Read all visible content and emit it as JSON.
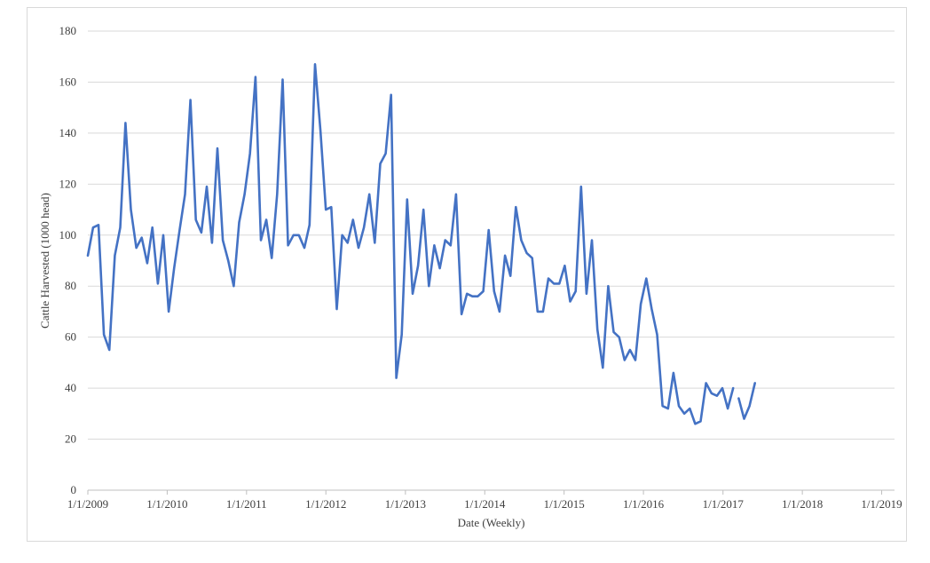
{
  "chart_data": {
    "type": "line",
    "title": "",
    "xlabel": "Date (Weekly)",
    "ylabel": "Cattle Harvested (1000 head)",
    "ylim": [
      0,
      180
    ],
    "y_ticks": [
      0,
      20,
      40,
      60,
      80,
      100,
      120,
      140,
      160,
      180
    ],
    "x_ticks": [
      "1/1/2009",
      "1/1/2010",
      "1/1/2011",
      "1/1/2012",
      "1/1/2013",
      "1/1/2014",
      "1/1/2015",
      "1/1/2016",
      "1/1/2017",
      "1/1/2018",
      "1/1/2019"
    ],
    "x_range": [
      "2009-01-01",
      "2019-03-01"
    ],
    "grid": "horizontal",
    "line_color": "#4472c4",
    "series": [
      {
        "segments": [
          [
            [
              "2009-01-01",
              92
            ],
            [
              "2009-01-25",
              103
            ],
            [
              "2009-02-19",
              104
            ],
            [
              "2009-03-16",
              61
            ],
            [
              "2009-04-10",
              55
            ],
            [
              "2009-05-05",
              92
            ],
            [
              "2009-05-30",
              103
            ],
            [
              "2009-06-23",
              144
            ],
            [
              "2009-07-18",
              110
            ],
            [
              "2009-08-12",
              95
            ],
            [
              "2009-09-06",
              99
            ],
            [
              "2009-10-01",
              89
            ],
            [
              "2009-10-25",
              103
            ],
            [
              "2009-11-19",
              81
            ],
            [
              "2009-12-14",
              100
            ],
            [
              "2010-01-08",
              70
            ],
            [
              "2010-02-02",
              87
            ],
            [
              "2010-02-27",
              102
            ],
            [
              "2010-03-24",
              116
            ],
            [
              "2010-04-18",
              153
            ],
            [
              "2010-05-13",
              106
            ],
            [
              "2010-06-07",
              101
            ],
            [
              "2010-07-02",
              119
            ],
            [
              "2010-07-26",
              97
            ],
            [
              "2010-08-20",
              134
            ],
            [
              "2010-09-14",
              98
            ],
            [
              "2010-10-09",
              90
            ],
            [
              "2010-11-03",
              80
            ],
            [
              "2010-11-28",
              105
            ],
            [
              "2010-12-23",
              116
            ],
            [
              "2011-01-17",
              132
            ],
            [
              "2011-02-11",
              162
            ],
            [
              "2011-03-08",
              98
            ],
            [
              "2011-04-02",
              106
            ],
            [
              "2011-04-27",
              91
            ],
            [
              "2011-05-22",
              116
            ],
            [
              "2011-06-16",
              161
            ],
            [
              "2011-07-11",
              96
            ],
            [
              "2011-08-05",
              100
            ],
            [
              "2011-08-30",
              100
            ],
            [
              "2011-09-24",
              95
            ],
            [
              "2011-10-18",
              104
            ],
            [
              "2011-11-12",
              167
            ],
            [
              "2011-12-07",
              141
            ],
            [
              "2012-01-01",
              110
            ],
            [
              "2012-01-26",
              111
            ],
            [
              "2012-02-20",
              71
            ],
            [
              "2012-03-16",
              100
            ],
            [
              "2012-04-10",
              97
            ],
            [
              "2012-05-05",
              106
            ],
            [
              "2012-05-30",
              95
            ],
            [
              "2012-06-24",
              103
            ],
            [
              "2012-07-19",
              116
            ],
            [
              "2012-08-13",
              97
            ],
            [
              "2012-09-07",
              128
            ],
            [
              "2012-10-02",
              132
            ],
            [
              "2012-10-27",
              155
            ],
            [
              "2012-11-20",
              44
            ],
            [
              "2012-12-15",
              61
            ],
            [
              "2013-01-09",
              114
            ],
            [
              "2013-02-03",
              77
            ],
            [
              "2013-02-28",
              88
            ],
            [
              "2013-03-25",
              110
            ],
            [
              "2013-04-19",
              80
            ],
            [
              "2013-05-14",
              96
            ],
            [
              "2013-06-08",
              87
            ],
            [
              "2013-07-03",
              98
            ],
            [
              "2013-07-28",
              96
            ],
            [
              "2013-08-22",
              116
            ],
            [
              "2013-09-16",
              69
            ],
            [
              "2013-10-11",
              77
            ],
            [
              "2013-11-05",
              76
            ],
            [
              "2013-11-30",
              76
            ],
            [
              "2013-12-25",
              78
            ],
            [
              "2014-01-19",
              102
            ],
            [
              "2014-02-13",
              78
            ],
            [
              "2014-03-10",
              70
            ],
            [
              "2014-04-04",
              92
            ],
            [
              "2014-04-29",
              84
            ],
            [
              "2014-05-24",
              111
            ],
            [
              "2014-06-18",
              98
            ],
            [
              "2014-07-13",
              93
            ],
            [
              "2014-08-07",
              91
            ],
            [
              "2014-09-01",
              70
            ],
            [
              "2014-09-26",
              70
            ],
            [
              "2014-10-21",
              83
            ],
            [
              "2014-11-15",
              81
            ],
            [
              "2014-12-10",
              81
            ],
            [
              "2015-01-04",
              88
            ],
            [
              "2015-01-29",
              74
            ],
            [
              "2015-02-23",
              78
            ],
            [
              "2015-03-20",
              119
            ],
            [
              "2015-04-14",
              77
            ],
            [
              "2015-05-09",
              98
            ],
            [
              "2015-06-03",
              63
            ],
            [
              "2015-06-28",
              48
            ],
            [
              "2015-07-23",
              80
            ],
            [
              "2015-08-17",
              62
            ],
            [
              "2015-09-11",
              60
            ],
            [
              "2015-10-06",
              51
            ],
            [
              "2015-10-31",
              55
            ],
            [
              "2015-11-25",
              51
            ],
            [
              "2015-12-20",
              73
            ],
            [
              "2016-01-14",
              83
            ],
            [
              "2016-02-08",
              71
            ],
            [
              "2016-03-04",
              61
            ],
            [
              "2016-03-29",
              33
            ],
            [
              "2016-04-23",
              32
            ],
            [
              "2016-05-18",
              46
            ],
            [
              "2016-06-12",
              33
            ],
            [
              "2016-07-07",
              30
            ],
            [
              "2016-08-01",
              32
            ],
            [
              "2016-08-26",
              26
            ],
            [
              "2016-09-20",
              27
            ],
            [
              "2016-10-15",
              42
            ],
            [
              "2016-11-09",
              38
            ],
            [
              "2016-12-04",
              37
            ],
            [
              "2016-12-29",
              40
            ],
            [
              "2017-01-23",
              32
            ],
            [
              "2017-02-17",
              40
            ]
          ],
          [
            [
              "2017-03-14",
              36
            ],
            [
              "2017-04-08",
              28
            ],
            [
              "2017-05-03",
              33
            ],
            [
              "2017-05-28",
              42
            ]
          ]
        ]
      }
    ]
  }
}
